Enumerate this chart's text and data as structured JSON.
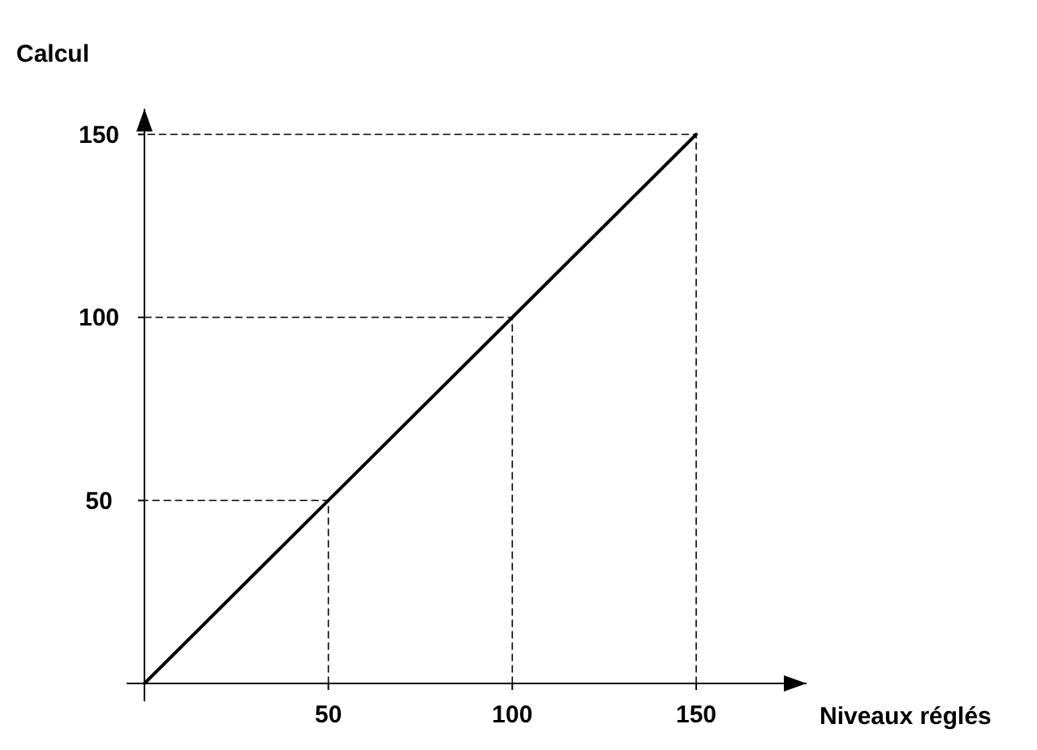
{
  "chart_data": {
    "type": "line",
    "xlabel": "Niveaux réglés",
    "ylabel": "Calcul",
    "xlim": [
      0,
      180
    ],
    "ylim": [
      0,
      157
    ],
    "xticks": [
      50,
      100,
      150
    ],
    "yticks": [
      50,
      100,
      150
    ],
    "grid": false,
    "series": [
      {
        "x": [
          0,
          150
        ],
        "values": [
          0,
          150
        ],
        "color": "#000000",
        "line_style": "solid"
      },
      {
        "x": [
          50,
          50,
          0
        ],
        "values": [
          0,
          50,
          50
        ],
        "color": "#000000",
        "line_style": "dashed"
      },
      {
        "x": [
          100,
          100,
          0
        ],
        "values": [
          0,
          100,
          100
        ],
        "color": "#000000",
        "line_style": "dashed"
      },
      {
        "x": [
          150,
          150,
          0
        ],
        "values": [
          0,
          150,
          150
        ],
        "color": "#000000",
        "line_style": "dashed"
      }
    ]
  }
}
